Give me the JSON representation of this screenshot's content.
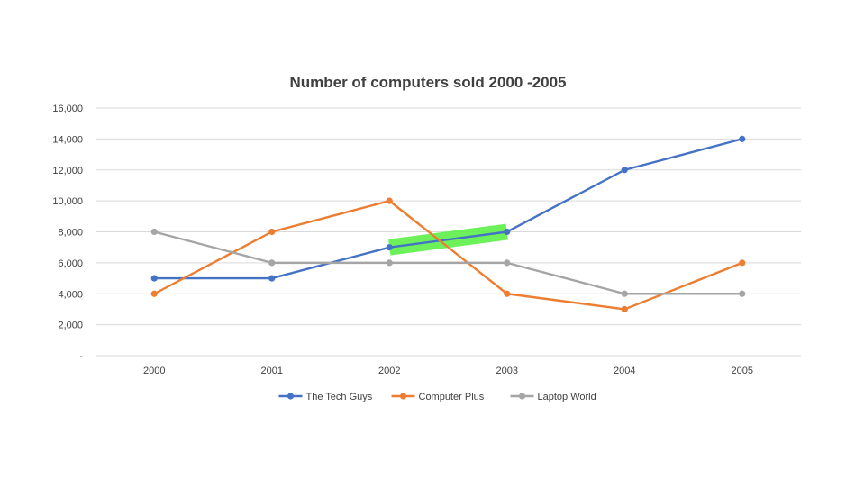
{
  "chart_data": {
    "type": "line",
    "title": "Number of computers sold 2000 -2005",
    "xlabel": "",
    "ylabel": "",
    "categories": [
      "2000",
      "2001",
      "2002",
      "2003",
      "2004",
      "2005"
    ],
    "ylim": [
      0,
      16000
    ],
    "yticks": [
      0,
      2000,
      4000,
      6000,
      8000,
      10000,
      12000,
      14000,
      16000
    ],
    "ytick_labels": [
      "-",
      "2,000",
      "4,000",
      "6,000",
      "8,000",
      "10,000",
      "12,000",
      "14,000",
      "16,000"
    ],
    "grid": true,
    "legend_position": "bottom",
    "series": [
      {
        "name": "The Tech Guys",
        "color": "#4472c4",
        "values": [
          5000,
          5000,
          7000,
          8000,
          12000,
          14000
        ]
      },
      {
        "name": "Computer Plus",
        "color": "#ed7d31",
        "values": [
          4000,
          8000,
          10000,
          4000,
          3000,
          6000
        ]
      },
      {
        "name": "Laptop World",
        "color": "#a5a5a5",
        "values": [
          8000,
          6000,
          6000,
          6000,
          4000,
          4000
        ]
      }
    ],
    "highlight": {
      "series": "The Tech Guys",
      "from_category": "2002",
      "to_category": "2003",
      "color": "#5ef04a"
    }
  }
}
